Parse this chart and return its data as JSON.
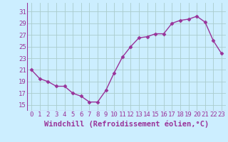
{
  "x": [
    0,
    1,
    2,
    3,
    4,
    5,
    6,
    7,
    8,
    9,
    10,
    11,
    12,
    13,
    14,
    15,
    16,
    17,
    18,
    19,
    20,
    21,
    22,
    23
  ],
  "y": [
    21,
    19.5,
    19,
    18.2,
    18.2,
    17,
    16.5,
    15.5,
    15.5,
    17.5,
    20.5,
    23.2,
    25,
    26.5,
    26.7,
    27.2,
    27.2,
    29,
    29.5,
    29.7,
    30.2,
    29.2,
    26,
    23.8
  ],
  "line_color": "#993399",
  "marker": "D",
  "marker_size": 2.5,
  "bg_color": "#cceeff",
  "grid_color": "#aacccc",
  "text_color": "#993399",
  "xlabel": "Windchill (Refroidissement éolien,°C)",
  "xticks": [
    0,
    1,
    2,
    3,
    4,
    5,
    6,
    7,
    8,
    9,
    10,
    11,
    12,
    13,
    14,
    15,
    16,
    17,
    18,
    19,
    20,
    21,
    22,
    23
  ],
  "yticks": [
    15,
    17,
    19,
    21,
    23,
    25,
    27,
    29,
    31
  ],
  "ylim": [
    14,
    32.5
  ],
  "xlim": [
    -0.5,
    23.5
  ],
  "tick_fontsize": 6.5,
  "xlabel_fontsize": 7.5,
  "linewidth": 1.0
}
